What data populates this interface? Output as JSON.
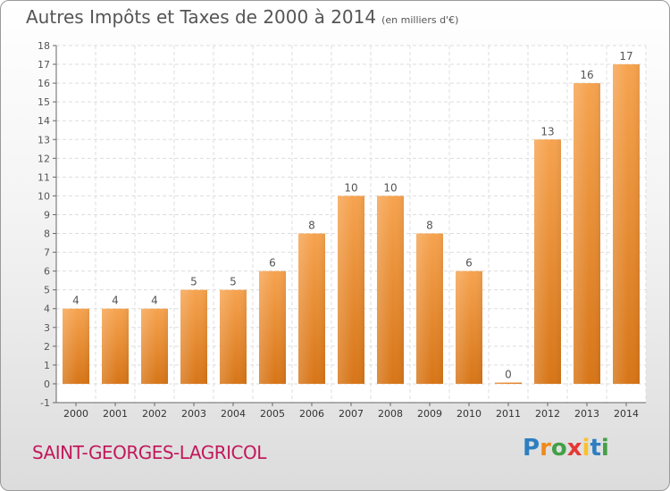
{
  "title": "Autres Impôts et Taxes de 2000 à 2014",
  "unit": "(en milliers d'€)",
  "commune": "SAINT-GEORGES-LAGRICOL",
  "logo": "Proxiti",
  "colors": {
    "bar_top": "#f6a34f",
    "bar_bottom": "#d77517",
    "grid": "#dddddd",
    "text": "#555555",
    "commune": "#c2185b"
  },
  "chart_data": {
    "type": "bar",
    "title": "Autres Impôts et Taxes de 2000 à 2014",
    "subtitle": "(en milliers d'€)",
    "categories": [
      "2000",
      "2001",
      "2002",
      "2003",
      "2004",
      "2005",
      "2006",
      "2007",
      "2008",
      "2009",
      "2010",
      "2011",
      "2012",
      "2013",
      "2014"
    ],
    "values": [
      4,
      4,
      4,
      5,
      5,
      6,
      8,
      10,
      10,
      8,
      6,
      0,
      13,
      16,
      17
    ],
    "ylim": [
      -1,
      18
    ],
    "yticks": [
      -1,
      0,
      1,
      2,
      3,
      4,
      5,
      6,
      7,
      8,
      9,
      10,
      11,
      12,
      13,
      14,
      15,
      16,
      17,
      18
    ],
    "grid": true
  }
}
